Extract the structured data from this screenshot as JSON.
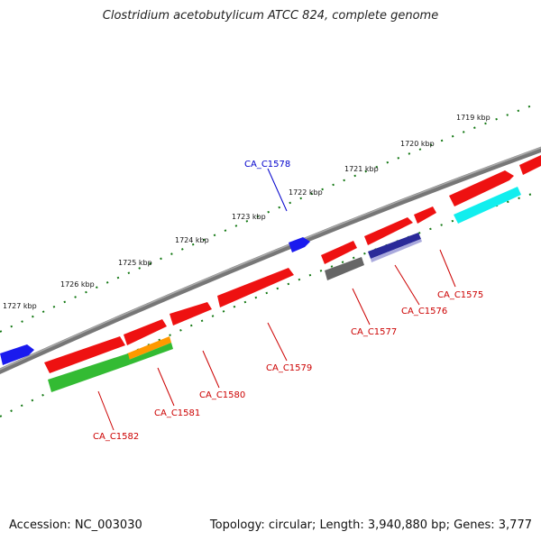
{
  "title": "Clostridium acetobutylicum ATCC 824, complete genome",
  "footer": {
    "accession": "Accession: NC_003030",
    "summary": "Topology: circular; Length: 3,940,880 bp; Genes: 3,777"
  },
  "scale_labels": [
    "1719 kbp",
    "1720 kbp",
    "1721 kbp",
    "1722 kbp",
    "1723 kbp",
    "1724 kbp",
    "1725 kbp",
    "1726 kbp",
    "1727 kbp"
  ],
  "gene_labels": [
    "CA_C1575",
    "CA_C1576",
    "CA_C1577",
    "CA_C1578",
    "CA_C1579",
    "CA_C1580",
    "CA_C1581",
    "CA_C1582"
  ],
  "colors": {
    "cds": "#ee1111",
    "reverse_feature": "#1a1aee",
    "green": "#33bb33",
    "cyan": "#11eeee",
    "grey": "#666666",
    "navy": "#2a2a99",
    "orange": "#ff9900",
    "tick": "#117711",
    "backbone": "#777777"
  }
}
